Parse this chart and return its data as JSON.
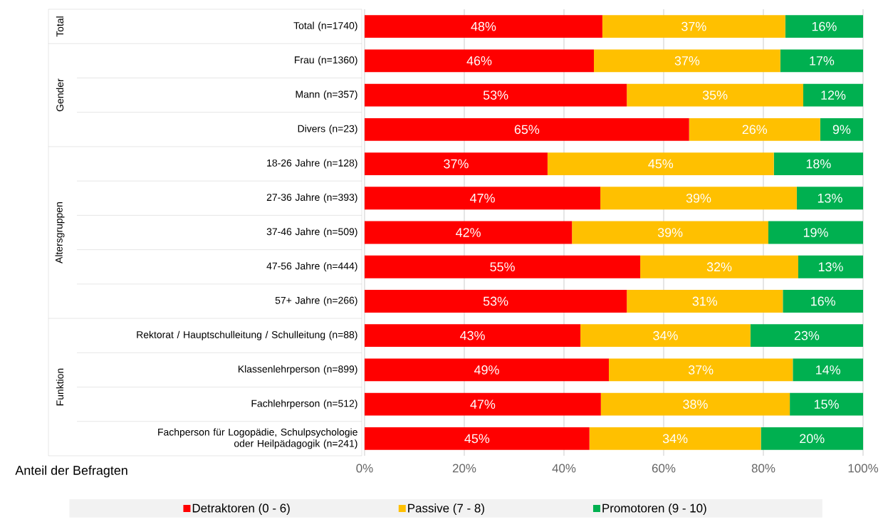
{
  "chart_data": {
    "type": "bar",
    "orientation": "horizontal",
    "stacked": true,
    "categories": [
      "Total (n=1740)",
      "Frau (n=1360)",
      "Mann (n=357)",
      "Divers (n=23)",
      "18-26 Jahre (n=128)",
      "27-36 Jahre (n=393)",
      "37-46 Jahre (n=509)",
      "47-56 Jahre (n=444)",
      "57+ Jahre (n=266)",
      "Rektorat / Hauptschulleitung / Schulleitung (n=88)",
      "Klassenlehrperson (n=899)",
      "Fachlehrperson (n=512)",
      "Fachperson für Logopädie, Schulpsychologie oder Heilpädagogik (n=241)"
    ],
    "series": [
      {
        "name": "Detraktoren (0 - 6)",
        "color": "#ff0000",
        "values": [
          47.7,
          46.0,
          52.6,
          65.1,
          36.7,
          47.3,
          41.6,
          55.3,
          52.6,
          43.3,
          49.0,
          47.4,
          45.1
        ],
        "value_labels": [
          "48%",
          "46%",
          "53%",
          "65%",
          "37%",
          "47%",
          "42%",
          "55%",
          "53%",
          "43%",
          "49%",
          "47%",
          "45%"
        ]
      },
      {
        "name": "Passive (7 - 8)",
        "color": "#ffc000",
        "values": [
          36.7,
          37.4,
          35.4,
          26.3,
          45.4,
          39.4,
          39.4,
          31.7,
          31.3,
          34.1,
          36.9,
          37.9,
          34.4
        ],
        "value_labels": [
          "37%",
          "37%",
          "35%",
          "26%",
          "45%",
          "39%",
          "39%",
          "32%",
          "31%",
          "34%",
          "37%",
          "38%",
          "34%"
        ]
      },
      {
        "name": "Promotoren (9 - 10)",
        "color": "#00b050",
        "values": [
          15.6,
          16.6,
          12.0,
          8.6,
          17.9,
          13.3,
          19.0,
          13.0,
          16.1,
          22.6,
          14.1,
          14.7,
          20.5
        ],
        "value_labels": [
          "16%",
          "17%",
          "12%",
          "9%",
          "18%",
          "13%",
          "19%",
          "13%",
          "16%",
          "23%",
          "14%",
          "15%",
          "20%"
        ]
      }
    ],
    "xlim": [
      0,
      100
    ],
    "xticks": [
      {
        "value": 0,
        "label": "0%"
      },
      {
        "value": 20,
        "label": "20%"
      },
      {
        "value": 40,
        "label": "40%"
      },
      {
        "value": 60,
        "label": "60%"
      },
      {
        "value": 80,
        "label": "80%"
      },
      {
        "value": 100,
        "label": "100%"
      }
    ],
    "xlabel": "Anteil der Befragten",
    "grid": "x",
    "legend": "bottom",
    "annotations": [
      "Total",
      "Gender",
      "Altersgruppen",
      "Funktion"
    ]
  }
}
